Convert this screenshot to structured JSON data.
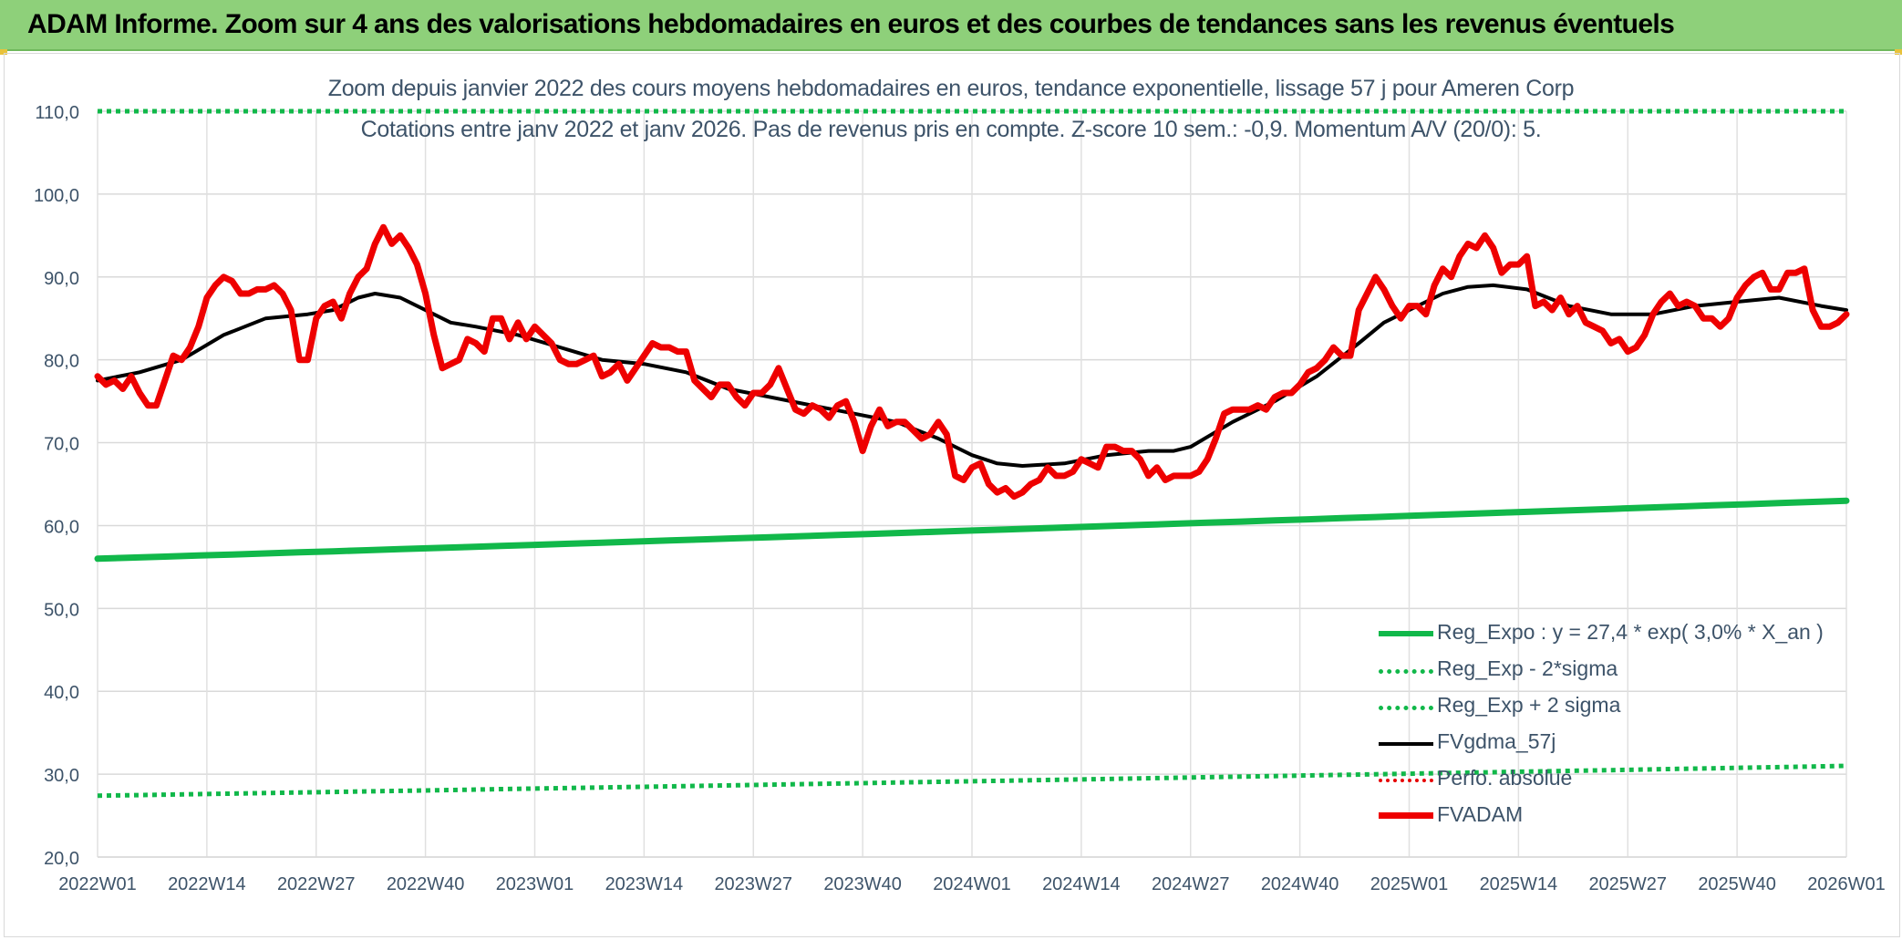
{
  "header": {
    "title": "ADAM Informe. Zoom sur 4 ans des valorisations hebdomadaires en euros et des courbes de tendances sans les revenus éventuels"
  },
  "chart_data": {
    "type": "line",
    "title": "Zoom depuis janvier 2022 des cours moyens hebdomadaires en euros, tendance exponentielle, lissage 57 j pour Ameren Corp",
    "subtitle": "Cotations entre janv 2022 et janv 2026. Pas de revenus pris en compte. Z-score 10 sem.: -0,9. Momentum A/V (20/0): 5.",
    "xlabel": "",
    "ylabel": "",
    "ylim": [
      20,
      110
    ],
    "y_ticks": [
      "20,0",
      "30,0",
      "40,0",
      "50,0",
      "60,0",
      "70,0",
      "80,0",
      "90,0",
      "100,0",
      "110,0"
    ],
    "x_ticks": [
      "2022W01",
      "2022W14",
      "2022W27",
      "2022W40",
      "2023W01",
      "2023W14",
      "2023W27",
      "2023W40",
      "2024W01",
      "2024W14",
      "2024W27",
      "2024W40",
      "2025W01",
      "2025W14",
      "2025W27",
      "2025W40",
      "2026W01"
    ],
    "x_tick_week_index": [
      0,
      13,
      26,
      39,
      52,
      65,
      78,
      91,
      104,
      117,
      130,
      143,
      156,
      169,
      182,
      195,
      208
    ],
    "grid": true,
    "legend_position": "bottom-right",
    "colors": {
      "reg_expo": "#11b84a",
      "sigma_bands": "#11b84a",
      "fvgdma": "#000000",
      "perfo": "#e60000",
      "fvadam": "#ee0000"
    },
    "series": [
      {
        "name": "Reg_Expo : y = 27,4 * exp( 3,0% *  X_an )",
        "style": "solid-green",
        "endpoints": [
          [
            0,
            56.0
          ],
          [
            208,
            63.0
          ]
        ]
      },
      {
        "name": "Reg_Exp - 2*sigma",
        "style": "dot-green",
        "endpoints": [
          [
            0,
            27.4
          ],
          [
            208,
            31.0
          ]
        ]
      },
      {
        "name": "Reg_Exp + 2 sigma",
        "style": "dot-green",
        "endpoints": [
          [
            0,
            110.0
          ],
          [
            208,
            110.0
          ]
        ]
      },
      {
        "name": "FVgdma_57j",
        "style": "solid-black",
        "points": [
          [
            0,
            77.5
          ],
          [
            5,
            78.5
          ],
          [
            10,
            80.0
          ],
          [
            15,
            83.0
          ],
          [
            20,
            85.0
          ],
          [
            25,
            85.5
          ],
          [
            28,
            86.0
          ],
          [
            31,
            87.5
          ],
          [
            33,
            88.0
          ],
          [
            36,
            87.5
          ],
          [
            39,
            86.0
          ],
          [
            42,
            84.5
          ],
          [
            45,
            84.0
          ],
          [
            50,
            83.0
          ],
          [
            55,
            81.5
          ],
          [
            60,
            80.0
          ],
          [
            65,
            79.5
          ],
          [
            70,
            78.5
          ],
          [
            75,
            76.5
          ],
          [
            80,
            75.5
          ],
          [
            85,
            74.5
          ],
          [
            90,
            73.5
          ],
          [
            95,
            72.5
          ],
          [
            100,
            70.5
          ],
          [
            104,
            68.5
          ],
          [
            107,
            67.5
          ],
          [
            110,
            67.2
          ],
          [
            115,
            67.5
          ],
          [
            120,
            68.5
          ],
          [
            125,
            69.0
          ],
          [
            128,
            69.0
          ],
          [
            130,
            69.5
          ],
          [
            135,
            72.5
          ],
          [
            140,
            75.0
          ],
          [
            145,
            78.0
          ],
          [
            150,
            82.0
          ],
          [
            153,
            84.5
          ],
          [
            156,
            86.0
          ],
          [
            160,
            88.0
          ],
          [
            163,
            88.8
          ],
          [
            166,
            89.0
          ],
          [
            170,
            88.5
          ],
          [
            175,
            86.5
          ],
          [
            180,
            85.5
          ],
          [
            185,
            85.5
          ],
          [
            190,
            86.5
          ],
          [
            195,
            87.0
          ],
          [
            200,
            87.5
          ],
          [
            205,
            86.5
          ],
          [
            208,
            86.0
          ]
        ]
      },
      {
        "name": "Perfo. absolue",
        "style": "dot-red",
        "points": []
      },
      {
        "name": "FVADAM",
        "style": "solid-red",
        "points": [
          [
            0,
            78.0
          ],
          [
            1,
            77.0
          ],
          [
            2,
            77.5
          ],
          [
            3,
            76.5
          ],
          [
            4,
            78.0
          ],
          [
            5,
            76.0
          ],
          [
            6,
            74.5
          ],
          [
            7,
            74.5
          ],
          [
            8,
            77.5
          ],
          [
            9,
            80.5
          ],
          [
            10,
            80.0
          ],
          [
            11,
            81.5
          ],
          [
            12,
            84.0
          ],
          [
            13,
            87.5
          ],
          [
            14,
            89.0
          ],
          [
            15,
            90.0
          ],
          [
            16,
            89.5
          ],
          [
            17,
            88.0
          ],
          [
            18,
            88.0
          ],
          [
            19,
            88.5
          ],
          [
            20,
            88.5
          ],
          [
            21,
            89.0
          ],
          [
            22,
            88.0
          ],
          [
            23,
            86.0
          ],
          [
            24,
            80.0
          ],
          [
            25,
            80.0
          ],
          [
            26,
            85.0
          ],
          [
            27,
            86.5
          ],
          [
            28,
            87.0
          ],
          [
            29,
            85.0
          ],
          [
            30,
            88.0
          ],
          [
            31,
            90.0
          ],
          [
            32,
            91.0
          ],
          [
            33,
            94.0
          ],
          [
            34,
            96.0
          ],
          [
            35,
            94.0
          ],
          [
            36,
            95.0
          ],
          [
            37,
            93.5
          ],
          [
            38,
            91.5
          ],
          [
            39,
            88.0
          ],
          [
            40,
            83.0
          ],
          [
            41,
            79.0
          ],
          [
            42,
            79.5
          ],
          [
            43,
            80.0
          ],
          [
            44,
            82.5
          ],
          [
            45,
            82.0
          ],
          [
            46,
            81.0
          ],
          [
            47,
            85.0
          ],
          [
            48,
            85.0
          ],
          [
            49,
            82.5
          ],
          [
            50,
            84.5
          ],
          [
            51,
            82.5
          ],
          [
            52,
            84.0
          ],
          [
            53,
            83.0
          ],
          [
            54,
            82.0
          ],
          [
            55,
            80.0
          ],
          [
            56,
            79.5
          ],
          [
            57,
            79.5
          ],
          [
            58,
            80.0
          ],
          [
            59,
            80.5
          ],
          [
            60,
            78.0
          ],
          [
            61,
            78.5
          ],
          [
            62,
            79.5
          ],
          [
            63,
            77.5
          ],
          [
            64,
            79.0
          ],
          [
            65,
            80.5
          ],
          [
            66,
            82.0
          ],
          [
            67,
            81.5
          ],
          [
            68,
            81.5
          ],
          [
            69,
            81.0
          ],
          [
            70,
            81.0
          ],
          [
            71,
            77.5
          ],
          [
            72,
            76.5
          ],
          [
            73,
            75.5
          ],
          [
            74,
            77.0
          ],
          [
            75,
            77.0
          ],
          [
            76,
            75.5
          ],
          [
            77,
            74.5
          ],
          [
            78,
            76.0
          ],
          [
            79,
            76.0
          ],
          [
            80,
            77.0
          ],
          [
            81,
            79.0
          ],
          [
            82,
            76.5
          ],
          [
            83,
            74.0
          ],
          [
            84,
            73.5
          ],
          [
            85,
            74.5
          ],
          [
            86,
            74.0
          ],
          [
            87,
            73.0
          ],
          [
            88,
            74.5
          ],
          [
            89,
            75.0
          ],
          [
            90,
            72.5
          ],
          [
            91,
            69.0
          ],
          [
            92,
            72.0
          ],
          [
            93,
            74.0
          ],
          [
            94,
            72.0
          ],
          [
            95,
            72.5
          ],
          [
            96,
            72.5
          ],
          [
            97,
            71.5
          ],
          [
            98,
            70.5
          ],
          [
            99,
            71.0
          ],
          [
            100,
            72.5
          ],
          [
            101,
            71.0
          ],
          [
            102,
            66.0
          ],
          [
            103,
            65.5
          ],
          [
            104,
            67.0
          ],
          [
            105,
            67.5
          ],
          [
            106,
            65.0
          ],
          [
            107,
            64.0
          ],
          [
            108,
            64.5
          ],
          [
            109,
            63.5
          ],
          [
            110,
            64.0
          ],
          [
            111,
            65.0
          ],
          [
            112,
            65.5
          ],
          [
            113,
            67.0
          ],
          [
            114,
            66.0
          ],
          [
            115,
            66.0
          ],
          [
            116,
            66.5
          ],
          [
            117,
            68.0
          ],
          [
            118,
            67.5
          ],
          [
            119,
            67.0
          ],
          [
            120,
            69.5
          ],
          [
            121,
            69.5
          ],
          [
            122,
            69.0
          ],
          [
            123,
            69.0
          ],
          [
            124,
            68.0
          ],
          [
            125,
            66.0
          ],
          [
            126,
            67.0
          ],
          [
            127,
            65.5
          ],
          [
            128,
            66.0
          ],
          [
            129,
            66.0
          ],
          [
            130,
            66.0
          ],
          [
            131,
            66.5
          ],
          [
            132,
            68.0
          ],
          [
            133,
            70.5
          ],
          [
            134,
            73.5
          ],
          [
            135,
            74.0
          ],
          [
            136,
            74.0
          ],
          [
            137,
            74.0
          ],
          [
            138,
            74.5
          ],
          [
            139,
            74.0
          ],
          [
            140,
            75.5
          ],
          [
            141,
            76.0
          ],
          [
            142,
            76.0
          ],
          [
            143,
            77.0
          ],
          [
            144,
            78.5
          ],
          [
            145,
            79.0
          ],
          [
            146,
            80.0
          ],
          [
            147,
            81.5
          ],
          [
            148,
            80.5
          ],
          [
            149,
            80.5
          ],
          [
            150,
            86.0
          ],
          [
            151,
            88.0
          ],
          [
            152,
            90.0
          ],
          [
            153,
            88.5
          ],
          [
            154,
            86.5
          ],
          [
            155,
            85.0
          ],
          [
            156,
            86.5
          ],
          [
            157,
            86.5
          ],
          [
            158,
            85.5
          ],
          [
            159,
            89.0
          ],
          [
            160,
            91.0
          ],
          [
            161,
            90.0
          ],
          [
            162,
            92.5
          ],
          [
            163,
            94.0
          ],
          [
            164,
            93.5
          ],
          [
            165,
            95.0
          ],
          [
            166,
            93.5
          ],
          [
            167,
            90.5
          ],
          [
            168,
            91.5
          ],
          [
            169,
            91.5
          ],
          [
            170,
            92.5
          ],
          [
            171,
            86.5
          ],
          [
            172,
            87.0
          ],
          [
            173,
            86.0
          ],
          [
            174,
            87.5
          ],
          [
            175,
            85.5
          ],
          [
            176,
            86.5
          ],
          [
            177,
            84.5
          ],
          [
            178,
            84.0
          ],
          [
            179,
            83.5
          ],
          [
            180,
            82.0
          ],
          [
            181,
            82.5
          ],
          [
            182,
            81.0
          ],
          [
            183,
            81.5
          ],
          [
            184,
            83.0
          ],
          [
            185,
            85.5
          ],
          [
            186,
            87.0
          ],
          [
            187,
            88.0
          ],
          [
            188,
            86.5
          ],
          [
            189,
            87.0
          ],
          [
            190,
            86.5
          ],
          [
            191,
            85.0
          ],
          [
            192,
            85.0
          ],
          [
            193,
            84.0
          ],
          [
            194,
            85.0
          ],
          [
            195,
            87.5
          ],
          [
            196,
            89.0
          ],
          [
            197,
            90.0
          ],
          [
            198,
            90.5
          ],
          [
            199,
            88.5
          ],
          [
            200,
            88.5
          ],
          [
            201,
            90.5
          ],
          [
            202,
            90.5
          ],
          [
            203,
            91.0
          ],
          [
            204,
            86.0
          ],
          [
            205,
            84.0
          ],
          [
            206,
            84.0
          ],
          [
            207,
            84.5
          ],
          [
            208,
            85.5
          ]
        ]
      }
    ]
  }
}
